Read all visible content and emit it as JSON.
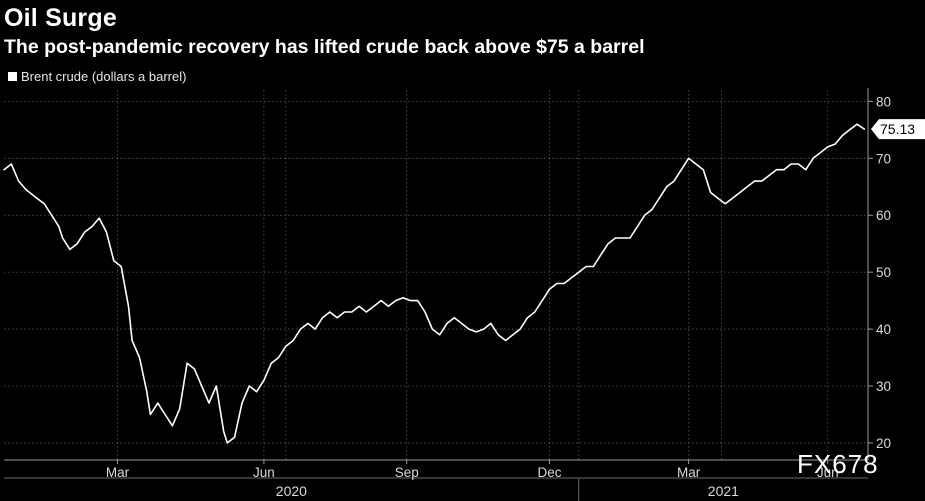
{
  "chart_data": {
    "type": "line",
    "title": "Oil Surge",
    "subtitle": "The post-pandemic recovery has lifted crude back above $75 a barrel",
    "series": [
      {
        "name": "Brent crude (dollars a barrel)",
        "last_value_label": "75.13",
        "points": [
          [
            0,
            68
          ],
          [
            2,
            69
          ],
          [
            4,
            66
          ],
          [
            6,
            64.5
          ],
          [
            9,
            63
          ],
          [
            11,
            62
          ],
          [
            13,
            60
          ],
          [
            15,
            58
          ],
          [
            16,
            56
          ],
          [
            18,
            54
          ],
          [
            20,
            55
          ],
          [
            22,
            57
          ],
          [
            24,
            58
          ],
          [
            26,
            59.5
          ],
          [
            28,
            57
          ],
          [
            30,
            52
          ],
          [
            32,
            51
          ],
          [
            34,
            44
          ],
          [
            35,
            38
          ],
          [
            37,
            35
          ],
          [
            39,
            29
          ],
          [
            40,
            25
          ],
          [
            42,
            27
          ],
          [
            44,
            25
          ],
          [
            46,
            23
          ],
          [
            48,
            26
          ],
          [
            50,
            34
          ],
          [
            52,
            33
          ],
          [
            54,
            30
          ],
          [
            56,
            27
          ],
          [
            58,
            30
          ],
          [
            60,
            22
          ],
          [
            61,
            20
          ],
          [
            63,
            21
          ],
          [
            65,
            27
          ],
          [
            67,
            30
          ],
          [
            69,
            29
          ],
          [
            71,
            31
          ],
          [
            73,
            34
          ],
          [
            75,
            35
          ],
          [
            77,
            37
          ],
          [
            79,
            38
          ],
          [
            81,
            40
          ],
          [
            83,
            41
          ],
          [
            85,
            40
          ],
          [
            87,
            42
          ],
          [
            89,
            43
          ],
          [
            91,
            42
          ],
          [
            93,
            43
          ],
          [
            95,
            43
          ],
          [
            97,
            44
          ],
          [
            99,
            43
          ],
          [
            101,
            44
          ],
          [
            103,
            45
          ],
          [
            105,
            44
          ],
          [
            107,
            45
          ],
          [
            109,
            45.5
          ],
          [
            111,
            45
          ],
          [
            113,
            45
          ],
          [
            115,
            43
          ],
          [
            117,
            40
          ],
          [
            119,
            39
          ],
          [
            121,
            41
          ],
          [
            123,
            42
          ],
          [
            125,
            41
          ],
          [
            127,
            40
          ],
          [
            129,
            39.5
          ],
          [
            131,
            40
          ],
          [
            133,
            41
          ],
          [
            135,
            39
          ],
          [
            137,
            38
          ],
          [
            139,
            39
          ],
          [
            141,
            40
          ],
          [
            143,
            42
          ],
          [
            145,
            43
          ],
          [
            147,
            45
          ],
          [
            149,
            47
          ],
          [
            151,
            48
          ],
          [
            153,
            48
          ],
          [
            155,
            49
          ],
          [
            157,
            50
          ],
          [
            159,
            51
          ],
          [
            161,
            51
          ],
          [
            163,
            53
          ],
          [
            165,
            55
          ],
          [
            167,
            56
          ],
          [
            169,
            56
          ],
          [
            171,
            56
          ],
          [
            173,
            58
          ],
          [
            175,
            60
          ],
          [
            177,
            61
          ],
          [
            179,
            63
          ],
          [
            181,
            65
          ],
          [
            183,
            66
          ],
          [
            185,
            68
          ],
          [
            187,
            70
          ],
          [
            189,
            69
          ],
          [
            191,
            68
          ],
          [
            193,
            64
          ],
          [
            195,
            63
          ],
          [
            197,
            62
          ],
          [
            199,
            63
          ],
          [
            201,
            64
          ],
          [
            203,
            65
          ],
          [
            205,
            66
          ],
          [
            207,
            66
          ],
          [
            209,
            67
          ],
          [
            211,
            68
          ],
          [
            213,
            68
          ],
          [
            215,
            69
          ],
          [
            217,
            69
          ],
          [
            219,
            68
          ],
          [
            221,
            70
          ],
          [
            223,
            71
          ],
          [
            225,
            72
          ],
          [
            227,
            72.5
          ],
          [
            229,
            74
          ],
          [
            231,
            75
          ],
          [
            233,
            76
          ],
          [
            235,
            75.13
          ]
        ]
      }
    ],
    "x_axis": {
      "domain": [
        0,
        236
      ],
      "ticks": [
        {
          "x": 31,
          "label": "Mar"
        },
        {
          "x": 71,
          "label": "Jun"
        },
        {
          "x": 110,
          "label": "Sep"
        },
        {
          "x": 149,
          "label": "Dec"
        },
        {
          "x": 187,
          "label": "Mar"
        },
        {
          "x": 225,
          "label": "Jun"
        }
      ],
      "years": [
        {
          "x_start": 0,
          "x_end": 157,
          "label": "2020"
        },
        {
          "x_start": 157,
          "x_end": 236,
          "label": "2021"
        }
      ],
      "year_boundaries": [
        77,
        157,
        196
      ]
    },
    "y_axis": {
      "ylim": [
        17,
        82
      ],
      "ticks": [
        20,
        30,
        40,
        50,
        60,
        70,
        80
      ]
    }
  },
  "watermark": "FX678"
}
